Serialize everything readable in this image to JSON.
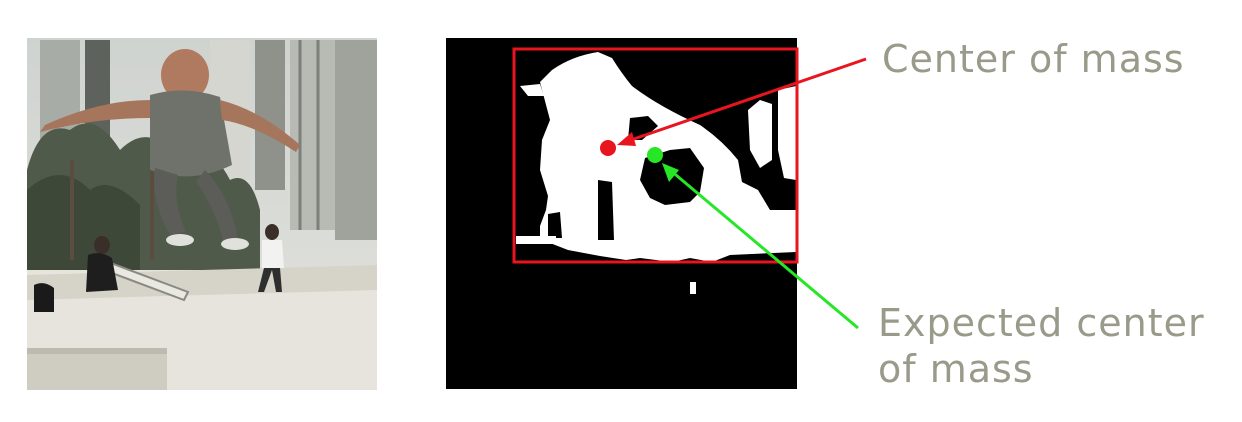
{
  "labels": {
    "center_of_mass": "Center of mass",
    "expected_line1": "Expected center",
    "expected_line2": "of mass"
  },
  "colors": {
    "label_text": "#9a9a8a",
    "bounding_box": "#e8141e",
    "center_of_mass": "#e8141e",
    "expected_center": "#26e626",
    "mask_background": "#000000",
    "mask_foreground": "#ffffff"
  },
  "icons": {
    "photo": "skateboarder-photo",
    "mask": "segmentation-mask"
  }
}
